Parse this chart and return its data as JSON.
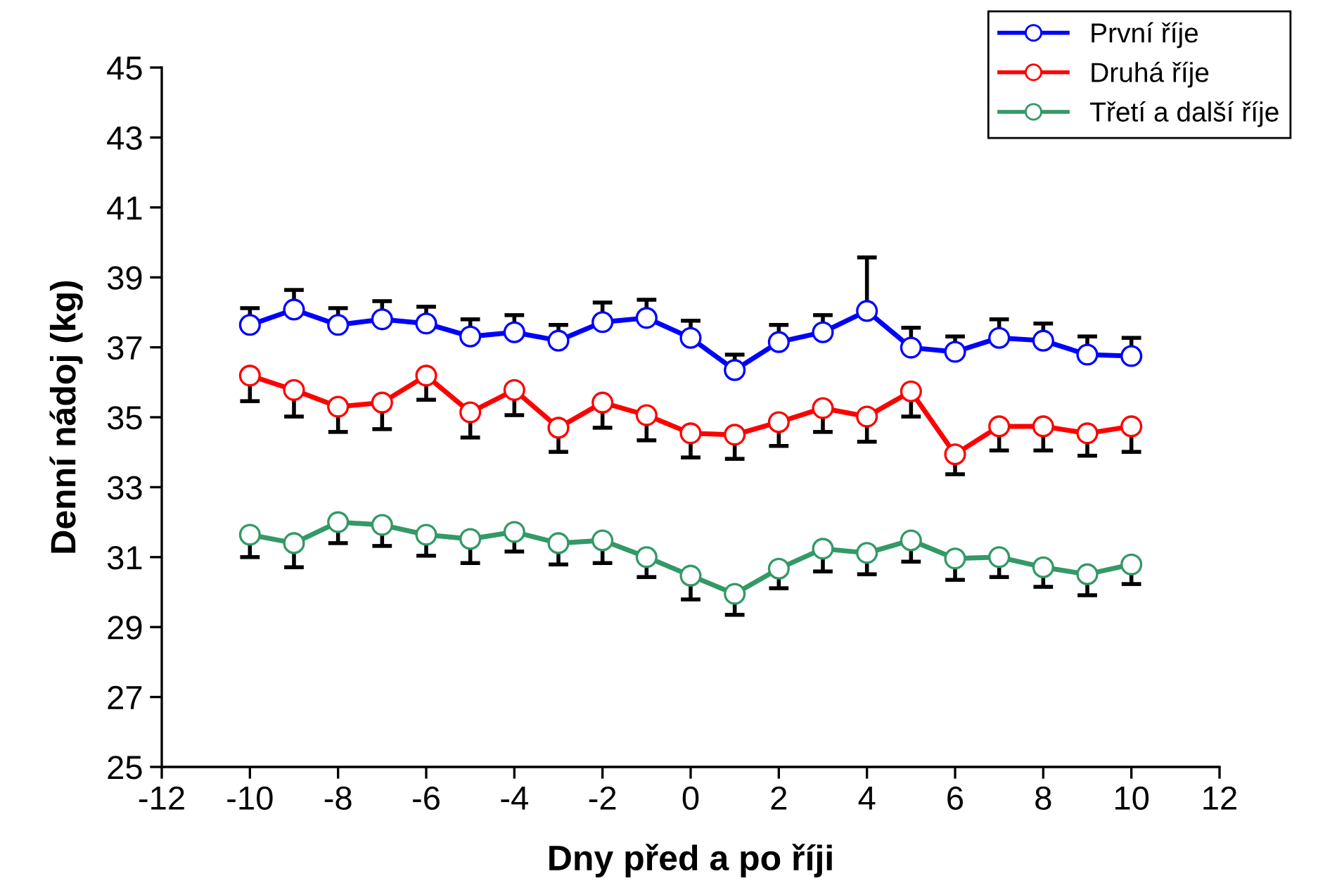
{
  "chart_data": {
    "type": "line",
    "xlabel": "Dny před a po říji",
    "ylabel": "Denní nádoj (kg)",
    "x": [
      -10,
      -9,
      -8,
      -7,
      -6,
      -5,
      -4,
      -3,
      -2,
      -1,
      0,
      1,
      2,
      3,
      4,
      5,
      6,
      7,
      8,
      9,
      10
    ],
    "xlim": [
      -12,
      12
    ],
    "xticks": [
      -12,
      -10,
      -8,
      -6,
      -4,
      -2,
      0,
      2,
      4,
      6,
      8,
      10,
      12
    ],
    "ylim": [
      25,
      45
    ],
    "yticks": [
      25,
      27,
      29,
      31,
      33,
      35,
      37,
      39,
      41,
      43,
      45
    ],
    "grid": false,
    "legend": "top right",
    "marker": "circle",
    "line_style": "solid",
    "series": [
      {
        "name": "První říje",
        "color": "#0000ff",
        "values": [
          37.64,
          38.08,
          37.64,
          37.8,
          37.68,
          37.31,
          37.43,
          37.19,
          37.72,
          37.84,
          37.27,
          36.35,
          37.15,
          37.43,
          38.04,
          36.99,
          36.87,
          37.27,
          37.19,
          36.79,
          36.75
        ],
        "errors": [
          [
            37.64,
            38.12
          ],
          [
            38.08,
            38.64
          ],
          [
            37.64,
            38.12
          ],
          [
            37.8,
            38.32
          ],
          [
            37.68,
            38.16
          ],
          [
            37.31,
            37.8
          ],
          [
            37.43,
            37.92
          ],
          [
            37.19,
            37.64
          ],
          [
            37.72,
            38.28
          ],
          [
            37.84,
            38.36
          ],
          [
            37.27,
            37.76
          ],
          [
            36.35,
            36.79
          ],
          [
            37.15,
            37.64
          ],
          [
            37.43,
            37.92
          ],
          [
            38.04,
            39.57
          ],
          [
            36.99,
            37.56
          ],
          [
            36.87,
            37.31
          ],
          [
            37.27,
            37.8
          ],
          [
            37.19,
            37.68
          ],
          [
            36.79,
            37.31
          ],
          [
            36.75,
            37.27
          ]
        ]
      },
      {
        "name": "Druhá říje",
        "color": "#ff0000",
        "values": [
          36.19,
          35.78,
          35.3,
          35.42,
          36.19,
          35.14,
          35.78,
          34.7,
          35.42,
          35.06,
          34.54,
          34.5,
          34.86,
          35.26,
          35.02,
          35.74,
          33.94,
          34.74,
          34.74,
          34.54,
          34.74
        ],
        "errors": [
          [
            35.46,
            36.19
          ],
          [
            35.02,
            35.78
          ],
          [
            34.58,
            35.3
          ],
          [
            34.66,
            35.42
          ],
          [
            35.5,
            36.19
          ],
          [
            34.42,
            35.14
          ],
          [
            35.06,
            35.78
          ],
          [
            34.01,
            34.7
          ],
          [
            34.7,
            35.42
          ],
          [
            34.34,
            35.06
          ],
          [
            33.85,
            34.54
          ],
          [
            33.81,
            34.5
          ],
          [
            34.18,
            34.86
          ],
          [
            34.58,
            35.26
          ],
          [
            34.3,
            35.02
          ],
          [
            35.02,
            35.74
          ],
          [
            33.37,
            33.94
          ],
          [
            34.05,
            34.74
          ],
          [
            34.05,
            34.74
          ],
          [
            33.9,
            34.54
          ],
          [
            34.01,
            34.74
          ]
        ]
      },
      {
        "name": "Třetí a další říje",
        "color": "#339966",
        "values": [
          31.64,
          31.4,
          32.0,
          31.92,
          31.64,
          31.52,
          31.72,
          31.4,
          31.48,
          31.0,
          30.47,
          29.95,
          30.67,
          31.24,
          31.12,
          31.48,
          30.96,
          31.0,
          30.71,
          30.51,
          30.79
        ],
        "errors": [
          [
            31.0,
            31.64
          ],
          [
            30.71,
            31.4
          ],
          [
            31.4,
            32.0
          ],
          [
            31.32,
            31.92
          ],
          [
            31.04,
            31.64
          ],
          [
            30.83,
            31.52
          ],
          [
            31.16,
            31.72
          ],
          [
            30.79,
            31.4
          ],
          [
            30.83,
            31.48
          ],
          [
            30.43,
            31.0
          ],
          [
            29.79,
            30.47
          ],
          [
            29.35,
            29.95
          ],
          [
            30.11,
            30.67
          ],
          [
            30.59,
            31.24
          ],
          [
            30.51,
            31.12
          ],
          [
            30.87,
            31.48
          ],
          [
            30.35,
            30.96
          ],
          [
            30.43,
            31.0
          ],
          [
            30.15,
            30.71
          ],
          [
            29.91,
            30.51
          ],
          [
            30.23,
            30.79
          ]
        ]
      }
    ]
  }
}
